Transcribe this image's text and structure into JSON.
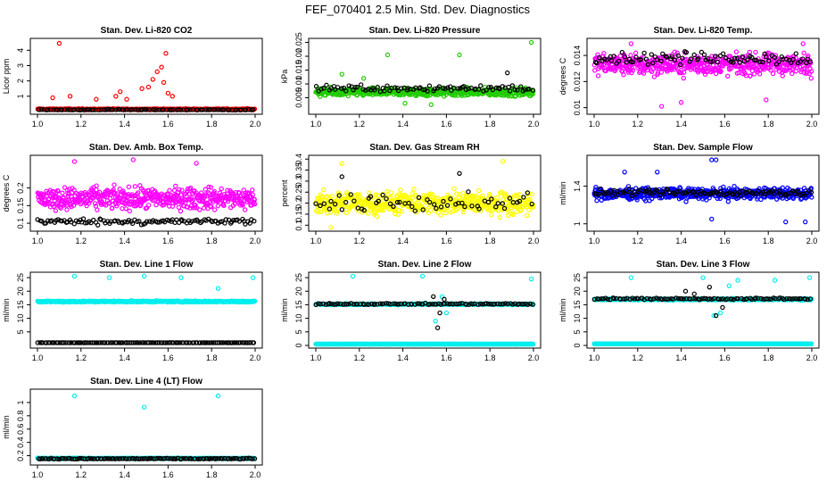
{
  "figure_title": "FEF_070401  2.5 Min. Std. Dev. Diagnostics",
  "colors": {
    "red": "#ff0000",
    "green": "#22cc00",
    "magenta": "#ff00ff",
    "yellow": "#ffff00",
    "blue": "#0000ff",
    "cyan": "#00eeee",
    "black": "#000000"
  },
  "chart_data": [
    {
      "type": "scatter",
      "title": "Stan. Dev. Li-820 CO2",
      "ylabel": "Licor ppm",
      "xlim": [
        1.0,
        2.0
      ],
      "ylim": [
        0,
        4.6
      ],
      "xticks": [
        1.0,
        1.2,
        1.4,
        1.6,
        1.8,
        2.0
      ],
      "yticks": [
        1,
        2,
        3,
        4
      ],
      "series": [
        {
          "name": "primary",
          "color": "red",
          "n": 420,
          "base": 0.15,
          "noise": 0.06,
          "spikes": [
            [
              1.1,
              4.45
            ],
            [
              1.07,
              0.9
            ],
            [
              1.15,
              1.0
            ],
            [
              1.27,
              0.8
            ],
            [
              1.36,
              1.0
            ],
            [
              1.38,
              1.3
            ],
            [
              1.41,
              0.8
            ],
            [
              1.48,
              1.5
            ],
            [
              1.51,
              1.6
            ],
            [
              1.53,
              2.1
            ],
            [
              1.55,
              2.6
            ],
            [
              1.57,
              2.9
            ],
            [
              1.59,
              3.8
            ],
            [
              1.6,
              1.2
            ],
            [
              1.62,
              1.0
            ],
            [
              1.58,
              1.9
            ]
          ]
        },
        {
          "name": "secondary",
          "color": "black",
          "n": 90,
          "base": 0.12,
          "noise": 0.03,
          "spikes": []
        }
      ]
    },
    {
      "type": "scatter",
      "title": "Stan. Dev. Li-820 Pressure",
      "ylabel": "kPa",
      "xlim": [
        1.0,
        2.0
      ],
      "ylim": [
        0.0,
        0.0255
      ],
      "xticks": [
        1.0,
        1.2,
        1.4,
        1.6,
        1.8,
        2.0
      ],
      "yticks": [
        0.005,
        0.01,
        0.015,
        0.02,
        0.025
      ],
      "series": [
        {
          "name": "primary",
          "color": "green",
          "n": 520,
          "base": 0.007,
          "noise": 0.0022,
          "spikes": [
            [
              1.33,
              0.0205
            ],
            [
              1.66,
              0.0205
            ],
            [
              1.99,
              0.025
            ],
            [
              1.22,
              0.012
            ],
            [
              1.12,
              0.0135
            ],
            [
              1.53,
              0.0025
            ],
            [
              1.41,
              0.003
            ]
          ]
        },
        {
          "name": "secondary",
          "color": "black",
          "n": 90,
          "base": 0.0085,
          "noise": 0.002,
          "spikes": [
            [
              1.88,
              0.014
            ]
          ]
        }
      ]
    },
    {
      "type": "scatter",
      "title": "Stan. Dev. Li-820 Temp.",
      "ylabel": "degrees C",
      "xlim": [
        1.0,
        2.0
      ],
      "ylim": [
        0.0097,
        0.0151
      ],
      "xticks": [
        1.0,
        1.2,
        1.4,
        1.6,
        1.8,
        2.0
      ],
      "yticks": [
        0.01,
        0.012,
        0.014
      ],
      "series": [
        {
          "name": "primary",
          "color": "magenta",
          "n": 520,
          "base": 0.0133,
          "noise": 0.0012,
          "spikes": [
            [
              1.17,
              0.0149
            ],
            [
              1.96,
              0.0149
            ],
            [
              1.31,
              0.0101
            ],
            [
              1.79,
              0.0106
            ],
            [
              1.4,
              0.0104
            ]
          ]
        },
        {
          "name": "secondary",
          "color": "black",
          "n": 90,
          "base": 0.0138,
          "noise": 0.0007,
          "spikes": []
        }
      ]
    },
    {
      "type": "scatter",
      "title": "Stan. Dev. Amb. Box Temp.",
      "ylabel": "degrees C",
      "xlim": [
        1.0,
        2.0
      ],
      "ylim": [
        0.085,
        0.285
      ],
      "xticks": [
        1.0,
        1.2,
        1.4,
        1.6,
        1.8,
        2.0
      ],
      "yticks": [
        0.1,
        0.15,
        0.2
      ],
      "series": [
        {
          "name": "primary",
          "color": "magenta",
          "n": 520,
          "base": 0.17,
          "noise": 0.045,
          "spikes": [
            [
              1.17,
              0.275
            ],
            [
              1.44,
              0.28
            ],
            [
              1.73,
              0.27
            ]
          ]
        },
        {
          "name": "secondary",
          "color": "black",
          "n": 110,
          "base": 0.105,
          "noise": 0.012,
          "spikes": []
        }
      ]
    },
    {
      "type": "scatter",
      "title": "Stan. Dev. Gas Stream RH",
      "ylabel": "percent",
      "xlim": [
        1.0,
        2.0
      ],
      "ylim": [
        0.085,
        0.405
      ],
      "xticks": [
        1.0,
        1.2,
        1.4,
        1.6,
        1.8,
        2.0
      ],
      "yticks": [
        0.1,
        0.15,
        0.2,
        0.25,
        0.3,
        0.35,
        0.4
      ],
      "series": [
        {
          "name": "primary",
          "color": "yellow",
          "n": 520,
          "base": 0.2,
          "noise": 0.075,
          "spikes": [
            [
              1.12,
              0.38
            ],
            [
              1.86,
              0.39
            ],
            [
              1.07,
              0.09
            ]
          ]
        },
        {
          "name": "secondary",
          "color": "black",
          "n": 60,
          "base": 0.2,
          "noise": 0.06,
          "spikes": [
            [
              1.66,
              0.335
            ],
            [
              1.12,
              0.32
            ]
          ]
        }
      ]
    },
    {
      "type": "scatter",
      "title": "Stan. Dev. Sample Flow",
      "ylabel": "ml/min",
      "xlim": [
        1.0,
        2.0
      ],
      "ylim": [
        0.95,
        1.7
      ],
      "xticks": [
        1.0,
        1.2,
        1.4,
        1.6,
        1.8,
        2.0
      ],
      "yticks": [
        1.0,
        1.4
      ],
      "series": [
        {
          "name": "primary",
          "color": "blue",
          "n": 520,
          "base": 1.32,
          "noise": 0.09,
          "spikes": [
            [
              1.14,
              1.55
            ],
            [
              1.29,
              1.55
            ],
            [
              1.54,
              1.68
            ],
            [
              1.56,
              1.68
            ],
            [
              1.54,
              1.05
            ],
            [
              1.88,
              1.02
            ],
            [
              1.97,
              1.02
            ]
          ]
        },
        {
          "name": "secondary",
          "color": "black",
          "n": 110,
          "base": 1.33,
          "noise": 0.05,
          "spikes": []
        }
      ]
    },
    {
      "type": "scatter",
      "title": "Stan. Dev. Line 1 Flow",
      "ylabel": "ml/min",
      "xlim": [
        1.0,
        2.0
      ],
      "ylim": [
        0,
        26
      ],
      "xticks": [
        1.0,
        1.2,
        1.4,
        1.6,
        1.8,
        2.0
      ],
      "yticks": [
        5,
        10,
        15,
        20,
        25
      ],
      "series": [
        {
          "name": "primary",
          "color": "cyan",
          "n": 520,
          "base": 16.2,
          "noise": 0.35,
          "spikes": [
            [
              1.17,
              25.5
            ],
            [
              1.33,
              25
            ],
            [
              1.49,
              25.5
            ],
            [
              1.66,
              25
            ],
            [
              1.83,
              21
            ],
            [
              1.99,
              25
            ]
          ]
        },
        {
          "name": "secondary",
          "color": "black",
          "n": 130,
          "base": 1.0,
          "noise": 0.05,
          "spikes": []
        }
      ]
    },
    {
      "type": "scatter",
      "title": "Stan. Dev. Line 2 Flow",
      "ylabel": "ml/min",
      "xlim": [
        1.0,
        2.0
      ],
      "ylim": [
        0,
        26
      ],
      "xticks": [
        1.0,
        1.2,
        1.4,
        1.6,
        1.8,
        2.0
      ],
      "yticks": [
        0,
        5,
        10,
        15,
        20,
        25
      ],
      "series": [
        {
          "name": "primary",
          "color": "cyan",
          "n": 520,
          "base": 15.2,
          "noise": 0.3,
          "spikes": [
            [
              1.17,
              25.5
            ],
            [
              1.49,
              25.5
            ],
            [
              1.99,
              24.5
            ],
            [
              1.55,
              9
            ],
            [
              1.58,
              18
            ],
            [
              1.6,
              12
            ]
          ]
        },
        {
          "name": "tertiary",
          "color": "cyan",
          "n": 520,
          "base": 0.5,
          "noise": 0.05,
          "spikes": []
        },
        {
          "name": "secondary",
          "color": "black",
          "n": 100,
          "base": 15.3,
          "noise": 0.35,
          "spikes": [
            [
              1.56,
              6.5
            ],
            [
              1.54,
              18
            ],
            [
              1.59,
              17
            ],
            [
              1.57,
              12
            ]
          ]
        }
      ]
    },
    {
      "type": "scatter",
      "title": "Stan. Dev. Line 3 Flow",
      "ylabel": "ml/min",
      "xlim": [
        1.0,
        2.0
      ],
      "ylim": [
        0,
        26
      ],
      "xticks": [
        1.0,
        1.2,
        1.4,
        1.6,
        1.8,
        2.0
      ],
      "yticks": [
        0,
        5,
        10,
        15,
        20,
        25
      ],
      "series": [
        {
          "name": "primary",
          "color": "cyan",
          "n": 520,
          "base": 17.0,
          "noise": 0.4,
          "spikes": [
            [
              1.17,
              25
            ],
            [
              1.5,
              25
            ],
            [
              1.66,
              24
            ],
            [
              1.83,
              24
            ],
            [
              1.99,
              25
            ],
            [
              1.55,
              11
            ],
            [
              1.58,
              12
            ],
            [
              1.62,
              22
            ]
          ]
        },
        {
          "name": "tertiary",
          "color": "cyan",
          "n": 520,
          "base": 0.6,
          "noise": 0.05,
          "spikes": []
        },
        {
          "name": "secondary",
          "color": "black",
          "n": 100,
          "base": 17.2,
          "noise": 0.5,
          "spikes": [
            [
              1.56,
              11
            ],
            [
              1.53,
              21.5
            ],
            [
              1.59,
              14
            ],
            [
              1.46,
              19
            ],
            [
              1.42,
              20
            ]
          ]
        }
      ]
    },
    {
      "type": "scatter",
      "title": "Stan. Dev. Line 4 (LT) Flow",
      "ylabel": "ml/min",
      "xlim": [
        1.0,
        2.0
      ],
      "ylim": [
        0.1,
        1.16
      ],
      "xticks": [
        1.0,
        1.2,
        1.4,
        1.6,
        1.8,
        2.0
      ],
      "yticks": [
        0.2,
        0.4,
        0.6,
        0.8,
        1.0
      ],
      "series": [
        {
          "name": "primary",
          "color": "cyan",
          "n": 520,
          "base": 0.16,
          "noise": 0.008,
          "spikes": [
            [
              1.17,
              1.1
            ],
            [
              1.83,
              1.1
            ],
            [
              1.49,
              0.93
            ]
          ]
        },
        {
          "name": "secondary",
          "color": "black",
          "n": 130,
          "base": 0.155,
          "noise": 0.01,
          "spikes": []
        }
      ]
    }
  ]
}
